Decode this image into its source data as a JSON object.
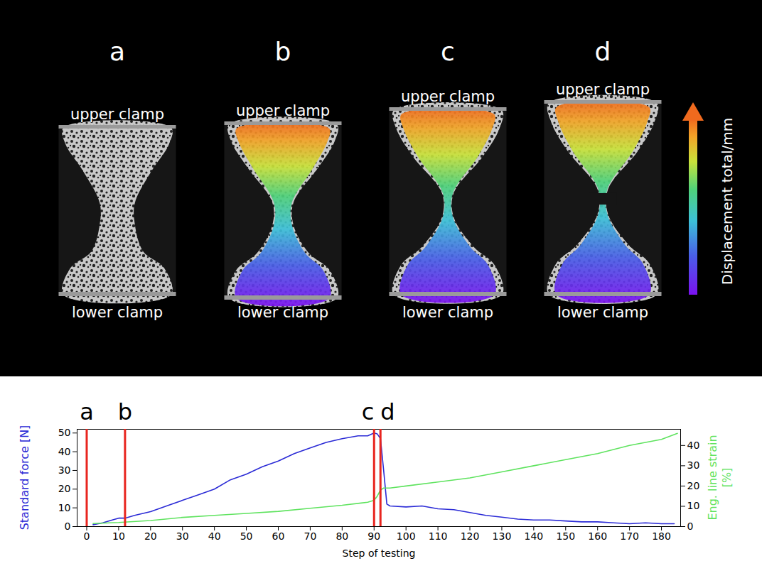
{
  "specimens": {
    "panels": [
      {
        "label": "a",
        "upper": "upper clamp",
        "lower": "lower clamp"
      },
      {
        "label": "b",
        "upper": "upper clamp",
        "lower": "lower clamp"
      },
      {
        "label": "c",
        "upper": "upper clamp",
        "lower": "lower clamp"
      },
      {
        "label": "d",
        "upper": "upper clamp",
        "lower": "lower clamp"
      }
    ],
    "colorbar_label": "Displacement total/mm"
  },
  "chart_data": {
    "type": "line",
    "x_label": "Step of testing",
    "y_label": "Standard force [N]",
    "y2_label": "Eng. line strain [%]",
    "xlim": [
      -3,
      186
    ],
    "xticks": [
      0,
      10,
      20,
      30,
      40,
      50,
      60,
      70,
      80,
      90,
      100,
      110,
      120,
      130,
      140,
      150,
      160,
      170,
      180
    ],
    "ylim": [
      0,
      52
    ],
    "yticks": [
      0,
      10,
      20,
      30,
      40,
      50
    ],
    "y2lim": [
      0,
      48
    ],
    "y2ticks": [
      0,
      10,
      20,
      30,
      40
    ],
    "series": [
      {
        "name": "Standard force [N]",
        "color": "#2b2bd6",
        "x": [
          2,
          5,
          8,
          10,
          12,
          15,
          20,
          25,
          30,
          35,
          40,
          45,
          50,
          55,
          60,
          65,
          70,
          75,
          80,
          85,
          88,
          90,
          91,
          92,
          93,
          94,
          95,
          100,
          105,
          110,
          115,
          120,
          125,
          130,
          135,
          140,
          145,
          150,
          155,
          160,
          165,
          170,
          175,
          180,
          184
        ],
        "values": [
          1,
          2,
          3.5,
          4.5,
          4.5,
          6,
          8,
          11,
          14,
          17,
          20,
          25,
          28,
          32,
          35,
          39,
          42,
          45,
          47,
          48.5,
          48.5,
          50,
          49.5,
          47,
          30,
          12,
          11,
          10.5,
          11,
          9.5,
          9,
          7.5,
          6,
          5,
          4,
          3.5,
          3.5,
          3,
          2.5,
          2.5,
          2,
          1.5,
          2,
          1.5,
          1.5
        ]
      },
      {
        "name": "Eng. line strain [%]",
        "color": "#5fe35f",
        "axis": "y2",
        "x": [
          2,
          10,
          20,
          30,
          40,
          50,
          60,
          70,
          80,
          88,
          90,
          91,
          92,
          93,
          95,
          100,
          110,
          120,
          130,
          140,
          150,
          160,
          170,
          180,
          185
        ],
        "values": [
          1.5,
          2,
          3,
          4.5,
          5.5,
          6.5,
          7.5,
          9,
          10.5,
          12,
          13,
          15,
          18,
          19,
          19,
          20,
          22,
          24,
          27,
          30,
          33,
          36,
          40,
          43,
          46
        ]
      }
    ],
    "annotations": [
      {
        "x": 0,
        "label": "a",
        "color": "#e8251f"
      },
      {
        "x": 12,
        "label": "b",
        "color": "#e8251f"
      },
      {
        "x": 90,
        "label": "c",
        "color": "#e8251f"
      },
      {
        "x": 92,
        "label": "d",
        "color": "#e8251f"
      }
    ]
  }
}
